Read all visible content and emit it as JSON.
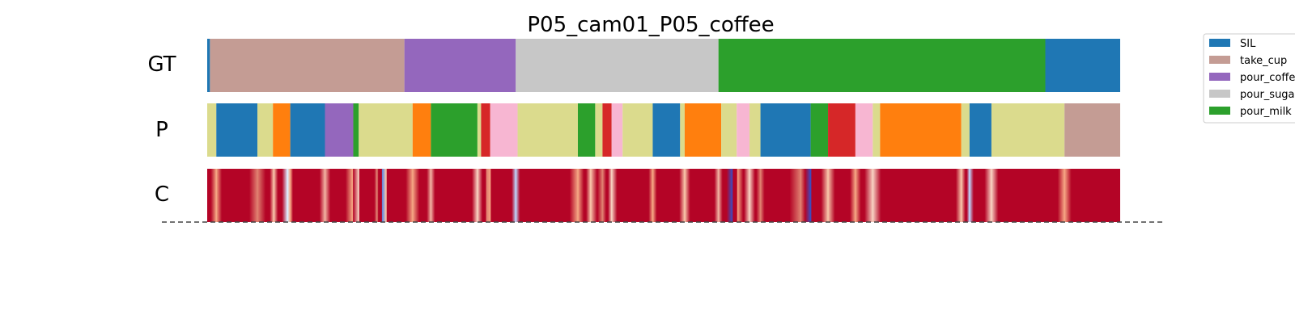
{
  "chart_data": {
    "type": "segmentation-timeline",
    "title": "P05_cam01_P05_coffee",
    "rows": [
      "GT",
      "P",
      "C"
    ],
    "x_range": [
      0,
      1
    ],
    "legend": {
      "placement": "top-right",
      "entries": [
        {
          "name": "SIL",
          "color": "#1f77b4"
        },
        {
          "name": "take_cup",
          "color": "#c49c94"
        },
        {
          "name": "pour_coffee",
          "color": "#9467bd"
        },
        {
          "name": "pour_sugar",
          "color": "#c7c7c7"
        },
        {
          "name": "pour_milk",
          "color": "#2ca02c"
        }
      ]
    },
    "gt_segments": [
      {
        "start": 0.0,
        "end": 0.003,
        "color": "#1f77b4"
      },
      {
        "start": 0.003,
        "end": 0.216,
        "color": "#c49c94"
      },
      {
        "start": 0.216,
        "end": 0.338,
        "color": "#9467bd"
      },
      {
        "start": 0.338,
        "end": 0.56,
        "color": "#c7c7c7"
      },
      {
        "start": 0.56,
        "end": 0.918,
        "color": "#2ca02c"
      },
      {
        "start": 0.918,
        "end": 1.0,
        "color": "#1f77b4"
      }
    ],
    "p_segments": [
      {
        "start": 0.0,
        "end": 0.01,
        "color": "#dbdb8d"
      },
      {
        "start": 0.01,
        "end": 0.055,
        "color": "#1f77b4"
      },
      {
        "start": 0.055,
        "end": 0.072,
        "color": "#dbdb8d"
      },
      {
        "start": 0.072,
        "end": 0.091,
        "color": "#ff7f0e"
      },
      {
        "start": 0.091,
        "end": 0.129,
        "color": "#1f77b4"
      },
      {
        "start": 0.129,
        "end": 0.16,
        "color": "#9467bd"
      },
      {
        "start": 0.16,
        "end": 0.166,
        "color": "#2ca02c"
      },
      {
        "start": 0.166,
        "end": 0.225,
        "color": "#dbdb8d"
      },
      {
        "start": 0.225,
        "end": 0.245,
        "color": "#ff7f0e"
      },
      {
        "start": 0.245,
        "end": 0.296,
        "color": "#2ca02c"
      },
      {
        "start": 0.296,
        "end": 0.3,
        "color": "#dbdb8d"
      },
      {
        "start": 0.3,
        "end": 0.31,
        "color": "#d62728"
      },
      {
        "start": 0.31,
        "end": 0.34,
        "color": "#f7b6d2"
      },
      {
        "start": 0.34,
        "end": 0.406,
        "color": "#dbdb8d"
      },
      {
        "start": 0.406,
        "end": 0.425,
        "color": "#2ca02c"
      },
      {
        "start": 0.425,
        "end": 0.433,
        "color": "#dbdb8d"
      },
      {
        "start": 0.433,
        "end": 0.443,
        "color": "#d62728"
      },
      {
        "start": 0.443,
        "end": 0.455,
        "color": "#f7b6d2"
      },
      {
        "start": 0.455,
        "end": 0.488,
        "color": "#dbdb8d"
      },
      {
        "start": 0.488,
        "end": 0.518,
        "color": "#1f77b4"
      },
      {
        "start": 0.518,
        "end": 0.523,
        "color": "#dbdb8d"
      },
      {
        "start": 0.523,
        "end": 0.563,
        "color": "#ff7f0e"
      },
      {
        "start": 0.563,
        "end": 0.58,
        "color": "#dbdb8d"
      },
      {
        "start": 0.58,
        "end": 0.594,
        "color": "#f7b6d2"
      },
      {
        "start": 0.594,
        "end": 0.606,
        "color": "#dbdb8d"
      },
      {
        "start": 0.606,
        "end": 0.661,
        "color": "#1f77b4"
      },
      {
        "start": 0.661,
        "end": 0.68,
        "color": "#2ca02c"
      },
      {
        "start": 0.68,
        "end": 0.71,
        "color": "#d62728"
      },
      {
        "start": 0.71,
        "end": 0.729,
        "color": "#f7b6d2"
      },
      {
        "start": 0.729,
        "end": 0.737,
        "color": "#dbdb8d"
      },
      {
        "start": 0.737,
        "end": 0.826,
        "color": "#ff7f0e"
      },
      {
        "start": 0.826,
        "end": 0.835,
        "color": "#dbdb8d"
      },
      {
        "start": 0.835,
        "end": 0.859,
        "color": "#1f77b4"
      },
      {
        "start": 0.859,
        "end": 0.939,
        "color": "#dbdb8d"
      },
      {
        "start": 0.939,
        "end": 1.0,
        "color": "#c49c94"
      }
    ],
    "c_base_color": "#b40426",
    "c_stripes": [
      {
        "pos": 0.01,
        "width": 0.004,
        "color": "#f4a582"
      },
      {
        "pos": 0.055,
        "width": 0.006,
        "color": "#e08070"
      },
      {
        "pos": 0.073,
        "width": 0.003,
        "color": "#f7c4a8"
      },
      {
        "pos": 0.088,
        "width": 0.004,
        "color": "#ddeeff"
      },
      {
        "pos": 0.091,
        "width": 0.006,
        "color": "#f4a582"
      },
      {
        "pos": 0.129,
        "width": 0.004,
        "color": "#f0b0a0"
      },
      {
        "pos": 0.159,
        "width": 0.005,
        "color": "#f4a582"
      },
      {
        "pos": 0.166,
        "width": 0.004,
        "color": "#f7d0c0"
      },
      {
        "pos": 0.186,
        "width": 0.002,
        "color": "#e08070"
      },
      {
        "pos": 0.192,
        "width": 0.003,
        "color": "#6a8ee0"
      },
      {
        "pos": 0.196,
        "width": 0.003,
        "color": "#f7c4a8"
      },
      {
        "pos": 0.225,
        "width": 0.005,
        "color": "#f4a582"
      },
      {
        "pos": 0.245,
        "width": 0.003,
        "color": "#f0b0a0"
      },
      {
        "pos": 0.296,
        "width": 0.004,
        "color": "#f7d0c0"
      },
      {
        "pos": 0.306,
        "width": 0.003,
        "color": "#e08070"
      },
      {
        "pos": 0.31,
        "width": 0.003,
        "color": "#f4a582"
      },
      {
        "pos": 0.338,
        "width": 0.003,
        "color": "#bcd2f7"
      },
      {
        "pos": 0.406,
        "width": 0.006,
        "color": "#f4a582"
      },
      {
        "pos": 0.42,
        "width": 0.005,
        "color": "#f7c4a8"
      },
      {
        "pos": 0.433,
        "width": 0.004,
        "color": "#e08070"
      },
      {
        "pos": 0.443,
        "width": 0.004,
        "color": "#f7d0c0"
      },
      {
        "pos": 0.488,
        "width": 0.003,
        "color": "#f4a582"
      },
      {
        "pos": 0.523,
        "width": 0.004,
        "color": "#f7c4a8"
      },
      {
        "pos": 0.56,
        "width": 0.003,
        "color": "#f0b0a0"
      },
      {
        "pos": 0.575,
        "width": 0.004,
        "color": "#3b4cc0"
      },
      {
        "pos": 0.581,
        "width": 0.004,
        "color": "#f4a582"
      },
      {
        "pos": 0.594,
        "width": 0.004,
        "color": "#f7d0c0"
      },
      {
        "pos": 0.606,
        "width": 0.003,
        "color": "#e08070"
      },
      {
        "pos": 0.65,
        "width": 0.008,
        "color": "#e08070"
      },
      {
        "pos": 0.661,
        "width": 0.004,
        "color": "#3b4cc0"
      },
      {
        "pos": 0.68,
        "width": 0.005,
        "color": "#f7c4a8"
      },
      {
        "pos": 0.71,
        "width": 0.004,
        "color": "#f4a582"
      },
      {
        "pos": 0.729,
        "width": 0.006,
        "color": "#f7d0c0"
      },
      {
        "pos": 0.826,
        "width": 0.004,
        "color": "#f7c4a8"
      },
      {
        "pos": 0.835,
        "width": 0.003,
        "color": "#bcd2f7"
      },
      {
        "pos": 0.859,
        "width": 0.005,
        "color": "#f7d0c0"
      },
      {
        "pos": 0.939,
        "width": 0.005,
        "color": "#f4a582"
      }
    ]
  }
}
